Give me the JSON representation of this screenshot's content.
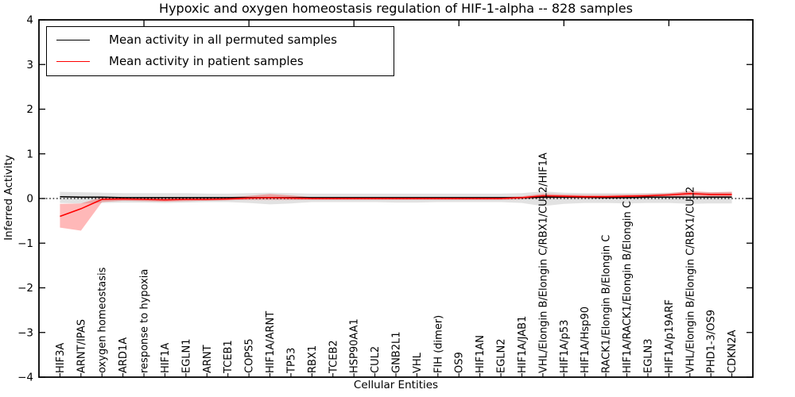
{
  "title": "Hypoxic and oxygen homeostasis regulation of HIF-1-alpha -- 828 samples",
  "axes": {
    "xlabel": "Cellular Entities",
    "ylabel": "Inferred Activity"
  },
  "colors": {
    "permuted_line": "#000000",
    "permuted_band": "#bfbfbf",
    "patient_line": "#ff0000",
    "patient_band": "#ff0000",
    "frame": "#000000",
    "background": "#ffffff"
  },
  "chart_data": {
    "type": "line",
    "title": "Hypoxic and oxygen homeostasis regulation of HIF-1-alpha -- 828 samples",
    "xlabel": "Cellular Entities",
    "ylabel": "Inferred Activity",
    "ylim": [
      -4,
      4
    ],
    "yticks": [
      -4,
      -3,
      -2,
      -1,
      0,
      1,
      2,
      3,
      4
    ],
    "ytick_labels": [
      "−4",
      "−3",
      "−2",
      "−1",
      "0",
      "1",
      "2",
      "3",
      "4"
    ],
    "grid": false,
    "zero_line": true,
    "legend_position": "upper left",
    "categories": [
      "HIF3A",
      "ARNT/IPAS",
      "oxygen homeostasis",
      "ARD1A",
      "response to hypoxia",
      "HIF1A",
      "EGLN1",
      "ARNT",
      "TCEB1",
      "COPS5",
      "HIF1A/ARNT",
      "TP53",
      "RBX1",
      "TCEB2",
      "HSP90AA1",
      "CUL2",
      "GNB2L1",
      "VHL",
      "FIH (dimer)",
      "OS9",
      "HIF1AN",
      "EGLN2",
      "HIF1A/JAB1",
      "VHL/Elongin B/Elongin C/RBX1/CUL2/HIF1A",
      "HIF1A/p53",
      "HIF1A/Hsp90",
      "RACK1/Elongin B/Elongin C",
      "HIF1A/RACK1/Elongin B/Elongin C",
      "EGLN3",
      "HIF1A/p19ARF",
      "VHL/Elongin B/Elongin C/RBX1/CUL2",
      "PHD1-3/OS9",
      "CDKN2A"
    ],
    "series": [
      {
        "name": "Mean activity in all permuted samples",
        "color": "#000000",
        "band_color": "#bfbfbf",
        "band_opacity": 0.45,
        "values": [
          0.04,
          0.03,
          0.03,
          0.02,
          0.02,
          0.02,
          0.02,
          0.02,
          0.02,
          0.02,
          0.02,
          0.02,
          0.02,
          0.02,
          0.02,
          0.02,
          0.02,
          0.02,
          0.02,
          0.02,
          0.02,
          0.02,
          0.02,
          0.03,
          0.03,
          0.03,
          0.02,
          0.02,
          0.03,
          0.03,
          0.03,
          0.03,
          0.03
        ],
        "band_low": [
          -0.1,
          -0.11,
          -0.1,
          -0.09,
          -0.09,
          -0.1,
          -0.09,
          -0.08,
          -0.08,
          -0.1,
          -0.13,
          -0.11,
          -0.08,
          -0.08,
          -0.08,
          -0.08,
          -0.09,
          -0.09,
          -0.08,
          -0.08,
          -0.08,
          -0.08,
          -0.1,
          -0.17,
          -0.12,
          -0.1,
          -0.1,
          -0.11,
          -0.1,
          -0.1,
          -0.12,
          -0.11,
          -0.11
        ],
        "band_high": [
          0.15,
          0.14,
          0.13,
          0.12,
          0.12,
          0.12,
          0.12,
          0.11,
          0.11,
          0.12,
          0.13,
          0.12,
          0.11,
          0.11,
          0.11,
          0.11,
          0.11,
          0.11,
          0.11,
          0.11,
          0.11,
          0.11,
          0.12,
          0.16,
          0.13,
          0.12,
          0.12,
          0.12,
          0.12,
          0.13,
          0.15,
          0.14,
          0.15
        ]
      },
      {
        "name": "Mean activity in patient samples",
        "color": "#ff0000",
        "band_color": "#ff0000",
        "band_opacity": 0.28,
        "values": [
          -0.4,
          -0.23,
          -0.02,
          -0.01,
          -0.02,
          -0.03,
          -0.02,
          -0.02,
          -0.01,
          0.01,
          0.02,
          0.01,
          0.0,
          0.0,
          0.0,
          0.0,
          0.0,
          0.0,
          0.0,
          0.0,
          0.0,
          0.0,
          0.02,
          0.06,
          0.05,
          0.04,
          0.04,
          0.05,
          0.06,
          0.08,
          0.11,
          0.09,
          0.09
        ],
        "band_low": [
          -0.65,
          -0.72,
          -0.08,
          -0.05,
          -0.06,
          -0.07,
          -0.06,
          -0.05,
          -0.04,
          -0.03,
          -0.03,
          -0.03,
          -0.03,
          -0.03,
          -0.03,
          -0.03,
          -0.03,
          -0.03,
          -0.03,
          -0.03,
          -0.03,
          -0.03,
          -0.02,
          0.01,
          0.01,
          0.0,
          0.0,
          0.01,
          0.02,
          0.03,
          0.06,
          0.04,
          0.04
        ],
        "band_high": [
          -0.12,
          -0.11,
          0.03,
          0.03,
          0.02,
          0.02,
          0.02,
          0.02,
          0.03,
          0.06,
          0.1,
          0.07,
          0.03,
          0.03,
          0.03,
          0.03,
          0.03,
          0.03,
          0.03,
          0.03,
          0.03,
          0.03,
          0.05,
          0.11,
          0.09,
          0.08,
          0.08,
          0.09,
          0.1,
          0.12,
          0.17,
          0.14,
          0.15
        ]
      }
    ]
  },
  "legend": {
    "entries": [
      {
        "label": "Mean activity in all permuted samples",
        "color": "#000000"
      },
      {
        "label": "Mean activity in patient samples",
        "color": "#ff0000"
      }
    ]
  }
}
